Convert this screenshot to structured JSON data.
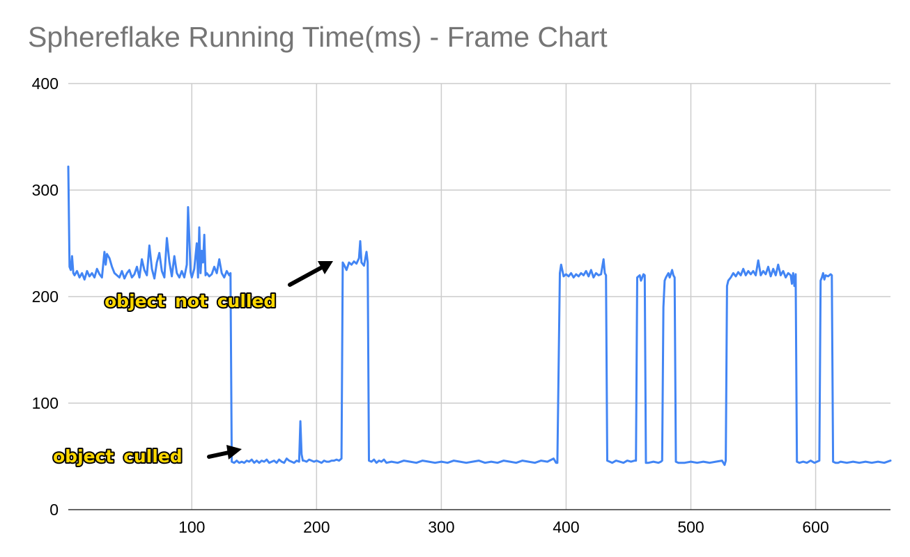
{
  "chart_data": {
    "type": "line",
    "title": "Sphereflake Running Time(ms) - Frame Chart",
    "xlabel": "",
    "ylabel": "",
    "xlim": [
      1,
      660
    ],
    "ylim": [
      0,
      400
    ],
    "x_ticks": [
      100,
      200,
      300,
      400,
      500,
      600
    ],
    "y_ticks": [
      0,
      100,
      200,
      300,
      400
    ],
    "grid": true,
    "legend": "none",
    "series": [
      {
        "color": "#4285f4",
        "points": [
          [
            1,
            322
          ],
          [
            2,
            228
          ],
          [
            3,
            225
          ],
          [
            4,
            238
          ],
          [
            5,
            222
          ],
          [
            6,
            220
          ],
          [
            8,
            224
          ],
          [
            10,
            218
          ],
          [
            12,
            222
          ],
          [
            14,
            216
          ],
          [
            16,
            224
          ],
          [
            18,
            219
          ],
          [
            20,
            222
          ],
          [
            22,
            218
          ],
          [
            24,
            226
          ],
          [
            26,
            221
          ],
          [
            28,
            218
          ],
          [
            30,
            242
          ],
          [
            31,
            230
          ],
          [
            32,
            240
          ],
          [
            34,
            236
          ],
          [
            36,
            228
          ],
          [
            38,
            222
          ],
          [
            40,
            220
          ],
          [
            42,
            218
          ],
          [
            44,
            224
          ],
          [
            46,
            217
          ],
          [
            48,
            222
          ],
          [
            50,
            225
          ],
          [
            52,
            218
          ],
          [
            54,
            221
          ],
          [
            56,
            228
          ],
          [
            58,
            218
          ],
          [
            60,
            235
          ],
          [
            62,
            225
          ],
          [
            64,
            220
          ],
          [
            66,
            248
          ],
          [
            68,
            226
          ],
          [
            70,
            217
          ],
          [
            72,
            232
          ],
          [
            74,
            241
          ],
          [
            76,
            224
          ],
          [
            78,
            218
          ],
          [
            80,
            255
          ],
          [
            82,
            233
          ],
          [
            84,
            219
          ],
          [
            86,
            238
          ],
          [
            88,
            222
          ],
          [
            90,
            218
          ],
          [
            92,
            224
          ],
          [
            94,
            218
          ],
          [
            96,
            230
          ],
          [
            97,
            284
          ],
          [
            98,
            255
          ],
          [
            99,
            223
          ],
          [
            100,
            218
          ],
          [
            102,
            226
          ],
          [
            104,
            250
          ],
          [
            105,
            218
          ],
          [
            106,
            265
          ],
          [
            107,
            222
          ],
          [
            108,
            243
          ],
          [
            109,
            232
          ],
          [
            110,
            258
          ],
          [
            111,
            220
          ],
          [
            112,
            222
          ],
          [
            114,
            219
          ],
          [
            116,
            221
          ],
          [
            118,
            228
          ],
          [
            120,
            222
          ],
          [
            122,
            235
          ],
          [
            124,
            222
          ],
          [
            126,
            218
          ],
          [
            128,
            224
          ],
          [
            130,
            220
          ],
          [
            131,
            222
          ],
          [
            132,
            45
          ],
          [
            134,
            44
          ],
          [
            136,
            46
          ],
          [
            138,
            44
          ],
          [
            140,
            45
          ],
          [
            142,
            44
          ],
          [
            144,
            46
          ],
          [
            146,
            45
          ],
          [
            148,
            47
          ],
          [
            150,
            44
          ],
          [
            152,
            46
          ],
          [
            154,
            44
          ],
          [
            156,
            46
          ],
          [
            158,
            45
          ],
          [
            160,
            47
          ],
          [
            162,
            44
          ],
          [
            164,
            45
          ],
          [
            166,
            46
          ],
          [
            168,
            44
          ],
          [
            170,
            47
          ],
          [
            172,
            45
          ],
          [
            174,
            44
          ],
          [
            176,
            48
          ],
          [
            178,
            46
          ],
          [
            180,
            45
          ],
          [
            182,
            44
          ],
          [
            184,
            46
          ],
          [
            186,
            45
          ],
          [
            187,
            83
          ],
          [
            188,
            52
          ],
          [
            189,
            46
          ],
          [
            190,
            46
          ],
          [
            192,
            45
          ],
          [
            194,
            47
          ],
          [
            196,
            46
          ],
          [
            198,
            45
          ],
          [
            200,
            46
          ],
          [
            202,
            45
          ],
          [
            204,
            44
          ],
          [
            206,
            46
          ],
          [
            208,
            45
          ],
          [
            210,
            45
          ],
          [
            212,
            46
          ],
          [
            214,
            46
          ],
          [
            216,
            47
          ],
          [
            218,
            46
          ],
          [
            220,
            48
          ],
          [
            221,
            232
          ],
          [
            222,
            230
          ],
          [
            224,
            225
          ],
          [
            226,
            232
          ],
          [
            228,
            230
          ],
          [
            230,
            233
          ],
          [
            232,
            231
          ],
          [
            234,
            236
          ],
          [
            235,
            252
          ],
          [
            236,
            232
          ],
          [
            238,
            229
          ],
          [
            240,
            242
          ],
          [
            241,
            232
          ],
          [
            242,
            46
          ],
          [
            244,
            45
          ],
          [
            246,
            47
          ],
          [
            248,
            44
          ],
          [
            250,
            46
          ],
          [
            252,
            45
          ],
          [
            254,
            47
          ],
          [
            256,
            44
          ],
          [
            260,
            45
          ],
          [
            265,
            44
          ],
          [
            270,
            46
          ],
          [
            275,
            45
          ],
          [
            280,
            44
          ],
          [
            285,
            46
          ],
          [
            290,
            45
          ],
          [
            295,
            44
          ],
          [
            300,
            45
          ],
          [
            305,
            44
          ],
          [
            310,
            46
          ],
          [
            315,
            45
          ],
          [
            320,
            44
          ],
          [
            325,
            45
          ],
          [
            330,
            46
          ],
          [
            335,
            44
          ],
          [
            340,
            45
          ],
          [
            345,
            44
          ],
          [
            350,
            46
          ],
          [
            355,
            45
          ],
          [
            360,
            44
          ],
          [
            365,
            46
          ],
          [
            370,
            45
          ],
          [
            375,
            44
          ],
          [
            380,
            46
          ],
          [
            385,
            45
          ],
          [
            390,
            48
          ],
          [
            392,
            44
          ],
          [
            393,
            44
          ],
          [
            395,
            222
          ],
          [
            396,
            230
          ],
          [
            398,
            219
          ],
          [
            400,
            221
          ],
          [
            402,
            219
          ],
          [
            404,
            222
          ],
          [
            406,
            218
          ],
          [
            408,
            221
          ],
          [
            410,
            219
          ],
          [
            412,
            222
          ],
          [
            414,
            220
          ],
          [
            416,
            224
          ],
          [
            418,
            219
          ],
          [
            420,
            225
          ],
          [
            422,
            218
          ],
          [
            424,
            222
          ],
          [
            426,
            220
          ],
          [
            428,
            221
          ],
          [
            430,
            235
          ],
          [
            431,
            222
          ],
          [
            432,
            220
          ],
          [
            433,
            46
          ],
          [
            435,
            45
          ],
          [
            437,
            44
          ],
          [
            440,
            46
          ],
          [
            443,
            45
          ],
          [
            446,
            44
          ],
          [
            449,
            46
          ],
          [
            452,
            45
          ],
          [
            455,
            46
          ],
          [
            456,
            46
          ],
          [
            457,
            218
          ],
          [
            459,
            220
          ],
          [
            460,
            215
          ],
          [
            462,
            221
          ],
          [
            463,
            220
          ],
          [
            464,
            44
          ],
          [
            466,
            44
          ],
          [
            470,
            45
          ],
          [
            474,
            44
          ],
          [
            476,
            45
          ],
          [
            477,
            46
          ],
          [
            478,
            190
          ],
          [
            479,
            215
          ],
          [
            480,
            218
          ],
          [
            482,
            222
          ],
          [
            483,
            218
          ],
          [
            485,
            225
          ],
          [
            486,
            220
          ],
          [
            487,
            218
          ],
          [
            488,
            45
          ],
          [
            490,
            44
          ],
          [
            495,
            44
          ],
          [
            500,
            45
          ],
          [
            505,
            44
          ],
          [
            510,
            45
          ],
          [
            515,
            44
          ],
          [
            520,
            45
          ],
          [
            525,
            46
          ],
          [
            527,
            42
          ],
          [
            528,
            46
          ],
          [
            529,
            210
          ],
          [
            530,
            215
          ],
          [
            532,
            218
          ],
          [
            534,
            222
          ],
          [
            536,
            219
          ],
          [
            538,
            223
          ],
          [
            540,
            220
          ],
          [
            542,
            226
          ],
          [
            544,
            220
          ],
          [
            546,
            224
          ],
          [
            548,
            221
          ],
          [
            550,
            224
          ],
          [
            552,
            220
          ],
          [
            554,
            234
          ],
          [
            556,
            220
          ],
          [
            558,
            224
          ],
          [
            560,
            221
          ],
          [
            562,
            228
          ],
          [
            564,
            219
          ],
          [
            566,
            226
          ],
          [
            568,
            220
          ],
          [
            570,
            230
          ],
          [
            572,
            220
          ],
          [
            574,
            224
          ],
          [
            576,
            218
          ],
          [
            578,
            222
          ],
          [
            580,
            220
          ],
          [
            581,
            212
          ],
          [
            582,
            222
          ],
          [
            583,
            210
          ],
          [
            584,
            221
          ],
          [
            585,
            45
          ],
          [
            587,
            44
          ],
          [
            590,
            45
          ],
          [
            593,
            44
          ],
          [
            596,
            46
          ],
          [
            599,
            44
          ],
          [
            601,
            45
          ],
          [
            603,
            46
          ],
          [
            604,
            215
          ],
          [
            605,
            218
          ],
          [
            606,
            222
          ],
          [
            607,
            216
          ],
          [
            608,
            220
          ],
          [
            610,
            219
          ],
          [
            612,
            221
          ],
          [
            613,
            220
          ],
          [
            614,
            45
          ],
          [
            616,
            44
          ],
          [
            618,
            44
          ],
          [
            620,
            45
          ],
          [
            625,
            44
          ],
          [
            630,
            45
          ],
          [
            635,
            44
          ],
          [
            640,
            45
          ],
          [
            645,
            44
          ],
          [
            650,
            45
          ],
          [
            655,
            44
          ],
          [
            660,
            46
          ]
        ]
      }
    ],
    "annotations": [
      {
        "text": "object not culled",
        "color": "#ffd800"
      },
      {
        "text": "object culled",
        "color": "#ffd800"
      }
    ]
  }
}
